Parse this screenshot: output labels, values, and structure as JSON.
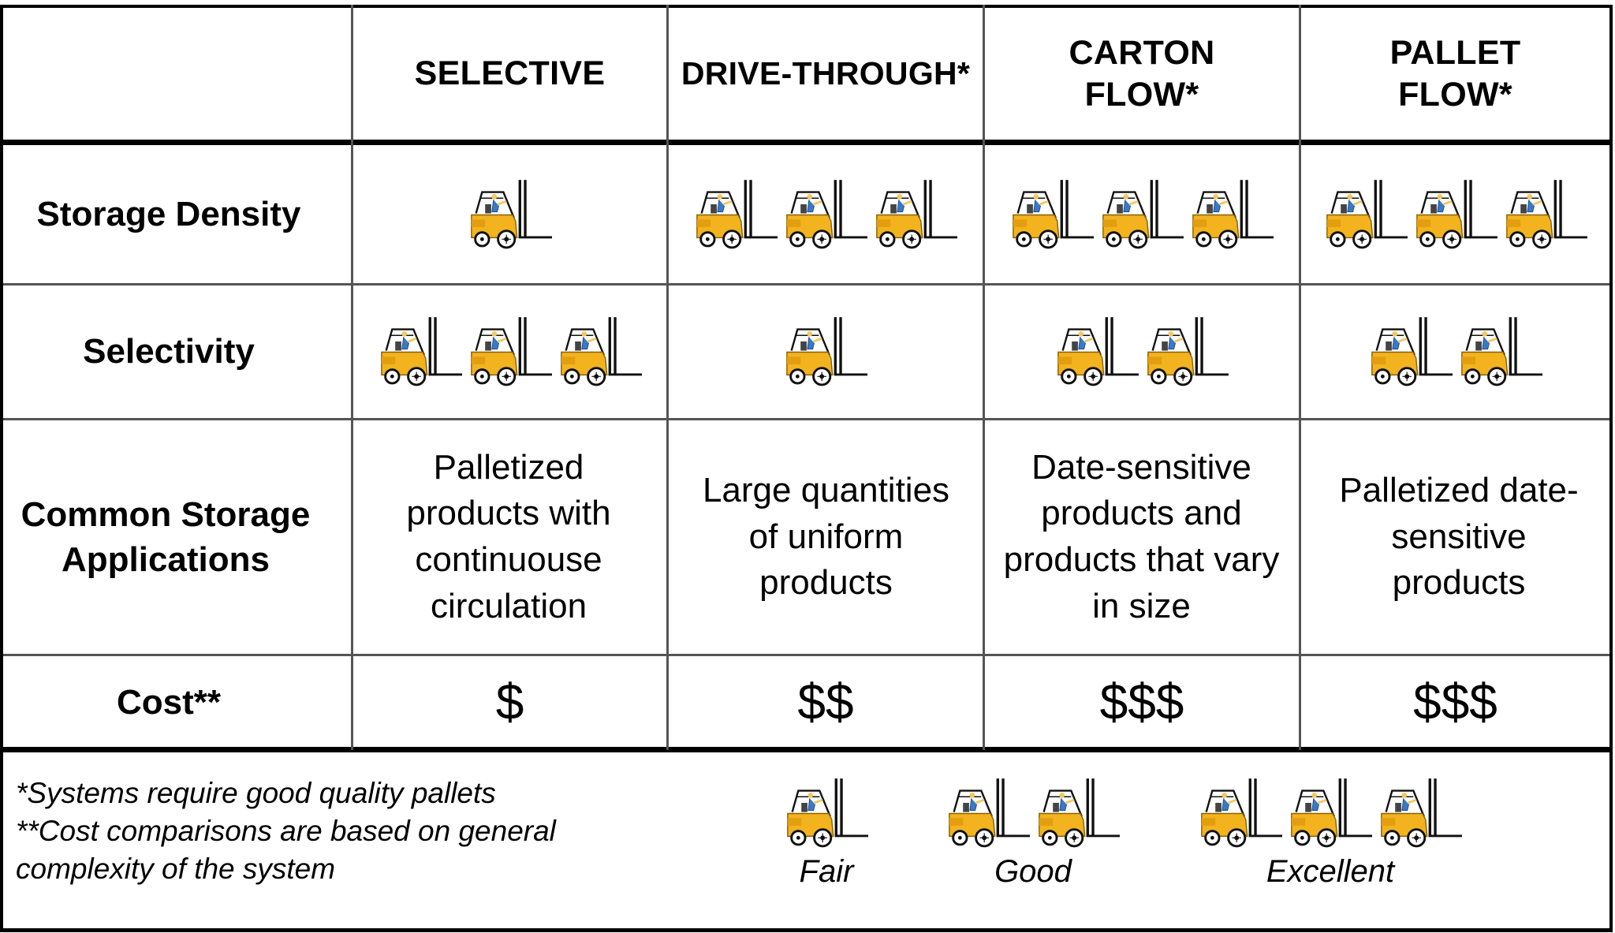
{
  "header": {
    "columns": [
      "SELECTIVE",
      "DRIVE-THROUGH*",
      "CARTON\nFLOW*",
      "PALLET\nFLOW*"
    ]
  },
  "rows": {
    "storage_density": {
      "label": "Storage Density",
      "ratings": [
        1,
        3,
        3,
        3
      ]
    },
    "selectivity": {
      "label": "Selectivity",
      "ratings": [
        3,
        1,
        2,
        2
      ]
    },
    "applications": {
      "label": "Common Storage Applications",
      "values": [
        "Palletized products with continuouse circulation",
        "Large quantities of uniform products",
        "Date-sensitive products and products that vary in size",
        "Palletized date-sensitive products"
      ]
    },
    "cost": {
      "label": "Cost**",
      "values": [
        "$",
        "$$",
        "$$$",
        "$$$"
      ]
    }
  },
  "footnotes": {
    "line1": "*Systems require good quality pallets",
    "line2": "**Cost comparisons are based on general",
    "line3": "complexity of the system"
  },
  "legend": [
    {
      "label": "Fair",
      "count": 1
    },
    {
      "label": "Good",
      "count": 2
    },
    {
      "label": "Excellent",
      "count": 3
    }
  ],
  "icon_name": "forklift-icon",
  "colors": {
    "forklift_body": "#f2b31f",
    "grid_line": "#000000",
    "grid_line_thin": "#555555"
  }
}
